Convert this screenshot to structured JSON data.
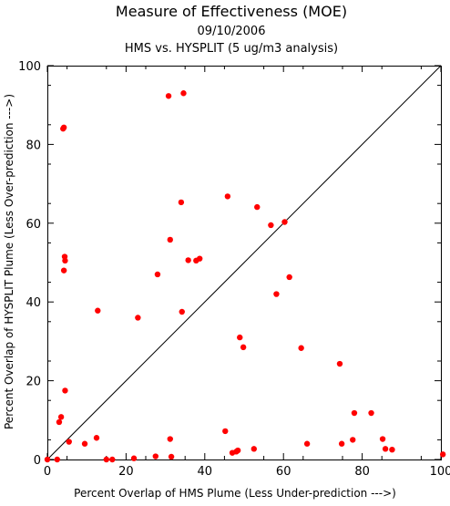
{
  "chart_data": {
    "type": "scatter",
    "title": "Measure of Effectiveness (MOE)",
    "subtitle_date": "09/10/2006",
    "subtitle_analysis": "HMS vs. HYSPLIT  (5 ug/m3 analysis)",
    "xlabel": "Percent Overlap of HMS Plume (Less Under-prediction --->)",
    "ylabel": "Percent Overlap of HYSPLIT Plume (Less Over-prediction --->)",
    "xlim": [
      0,
      100
    ],
    "ylim": [
      0,
      100
    ],
    "xticks": [
      0,
      20,
      40,
      60,
      80,
      100
    ],
    "yticks": [
      0,
      20,
      40,
      60,
      80,
      100
    ],
    "reference_line": "y = x",
    "grid": false,
    "point_color": "#ff0000",
    "line_color": "#000000",
    "points": [
      [
        0,
        0
      ],
      [
        2.5,
        0
      ],
      [
        15,
        0
      ],
      [
        16.5,
        0
      ],
      [
        22,
        0.3
      ],
      [
        27.5,
        0.8
      ],
      [
        31.5,
        0.7
      ],
      [
        3,
        9.5
      ],
      [
        3.5,
        10.8
      ],
      [
        4.5,
        17.5
      ],
      [
        5.5,
        4.5
      ],
      [
        9.5,
        4
      ],
      [
        12.5,
        5.5
      ],
      [
        4,
        84
      ],
      [
        4.2,
        84.3
      ],
      [
        4.2,
        48
      ],
      [
        4.4,
        51.5
      ],
      [
        4.5,
        50.5
      ],
      [
        12.8,
        37.8
      ],
      [
        23,
        36
      ],
      [
        28,
        47
      ],
      [
        30.8,
        92.3
      ],
      [
        31.2,
        55.8
      ],
      [
        31.2,
        5.2
      ],
      [
        34,
        65.3
      ],
      [
        34.2,
        37.5
      ],
      [
        34.6,
        93
      ],
      [
        35.8,
        50.6
      ],
      [
        37.8,
        50.5
      ],
      [
        38.7,
        51
      ],
      [
        45.2,
        7.2
      ],
      [
        45.8,
        66.8
      ],
      [
        47,
        1.7
      ],
      [
        48,
        2
      ],
      [
        48.4,
        2.3
      ],
      [
        48.9,
        31
      ],
      [
        49.8,
        28.5
      ],
      [
        52.5,
        2.7
      ],
      [
        53.3,
        64.1
      ],
      [
        56.8,
        59.5
      ],
      [
        58.2,
        42
      ],
      [
        60.3,
        60.3
      ],
      [
        61.5,
        46.3
      ],
      [
        64.5,
        28.3
      ],
      [
        66,
        4
      ],
      [
        74.3,
        24.3
      ],
      [
        74.8,
        4
      ],
      [
        77.6,
        5
      ],
      [
        78,
        11.8
      ],
      [
        82.3,
        11.8
      ],
      [
        85.2,
        5.2
      ],
      [
        85.9,
        2.7
      ],
      [
        87.6,
        2.5
      ],
      [
        100.5,
        1.3
      ]
    ]
  }
}
